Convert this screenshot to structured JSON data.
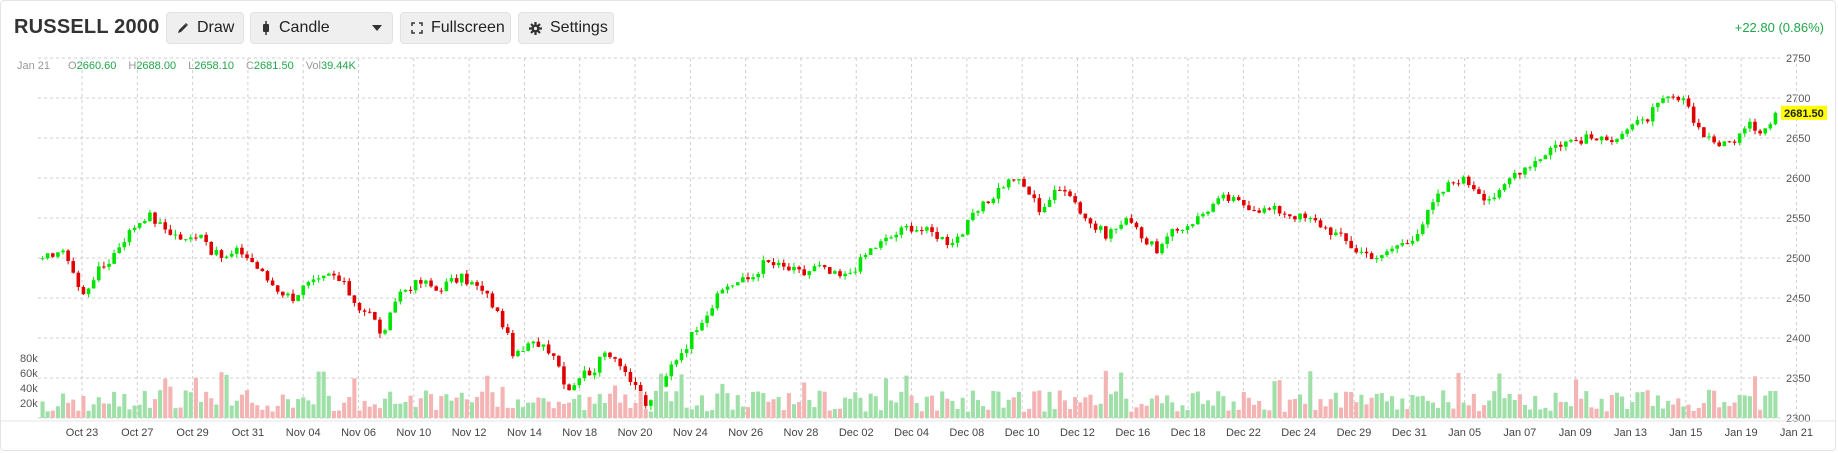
{
  "header": {
    "title": "RUSSELL 2000",
    "draw_label": "Draw",
    "chart_type_label": "Candle",
    "fullscreen_label": "Fullscreen",
    "settings_label": "Settings",
    "change_text": "+22.80 (0.86%)"
  },
  "ohlc": {
    "date": "Jan 21",
    "o_label": "O",
    "o": "2660.60",
    "h_label": "H",
    "h": "2688.00",
    "l_label": "L",
    "l": "2658.10",
    "c_label": "C",
    "c": "2681.50",
    "vol_label": "Vol",
    "vol": "39.44K"
  },
  "colors": {
    "up": "#00e400",
    "down": "#e00000",
    "vol_up": "#9fe0a8",
    "vol_down": "#f4b4b4",
    "grid": "#cfcfcf",
    "price_tag": "#ffff00",
    "change": "#21a649"
  },
  "chart_data": {
    "type": "candlestick",
    "title": "RUSSELL 2000",
    "ylim": [
      2300,
      2750
    ],
    "y_ticks": [
      2300,
      2350,
      2400,
      2450,
      2500,
      2550,
      2600,
      2650,
      2700,
      2750
    ],
    "y_tick_labels": [
      "2300",
      "2350",
      "2400",
      "2450",
      "2500",
      "2550",
      "2600",
      "2650",
      "2700",
      "2750"
    ],
    "volume_ticks": [
      "80k",
      "60k",
      "40k",
      "20k"
    ],
    "x_tick_labels": [
      "Oct 23",
      "Oct 27",
      "Oct 29",
      "Oct 31",
      "Nov 04",
      "Nov 06",
      "Nov 10",
      "Nov 12",
      "Nov 14",
      "Nov 18",
      "Nov 20",
      "Nov 24",
      "Nov 26",
      "Nov 28",
      "Dec 02",
      "Dec 04",
      "Dec 08",
      "Dec 10",
      "Dec 12",
      "Dec 16",
      "Dec 18",
      "Dec 22",
      "Dec 24",
      "Dec 29",
      "Dec 31",
      "Jan 05",
      "Jan 07",
      "Jan 09",
      "Jan 13",
      "Jan 15",
      "Jan 19",
      "Jan 21"
    ],
    "last_price": "2681.50",
    "grid": true,
    "close_path": [
      2495,
      2510,
      2500,
      2450,
      2480,
      2495,
      2520,
      2540,
      2555,
      2540,
      2530,
      2520,
      2535,
      2505,
      2500,
      2510,
      2495,
      2475,
      2460,
      2450,
      2465,
      2470,
      2480,
      2465,
      2440,
      2430,
      2400,
      2455,
      2465,
      2470,
      2460,
      2470,
      2475,
      2465,
      2450,
      2420,
      2375,
      2390,
      2395,
      2380,
      2335,
      2355,
      2360,
      2385,
      2370,
      2340,
      2315,
      2330,
      2370,
      2390,
      2420,
      2440,
      2465,
      2470,
      2475,
      2495,
      2490,
      2485,
      2480,
      2490,
      2480,
      2475,
      2490,
      2510,
      2520,
      2530,
      2540,
      2535,
      2530,
      2520,
      2530,
      2555,
      2570,
      2590,
      2600,
      2585,
      2560,
      2580,
      2590,
      2560,
      2540,
      2530,
      2540,
      2550,
      2520,
      2510,
      2530,
      2540,
      2550,
      2565,
      2575,
      2570,
      2565,
      2560,
      2560,
      2555,
      2550,
      2545,
      2535,
      2525,
      2510,
      2505,
      2500,
      2515,
      2520,
      2540,
      2570,
      2590,
      2600,
      2590,
      2575,
      2580,
      2605,
      2615,
      2625,
      2640,
      2645,
      2648,
      2650,
      2645,
      2655,
      2665,
      2670,
      2690,
      2700,
      2695,
      2665,
      2650,
      2640,
      2650,
      2665,
      2660,
      2681.5
    ]
  }
}
